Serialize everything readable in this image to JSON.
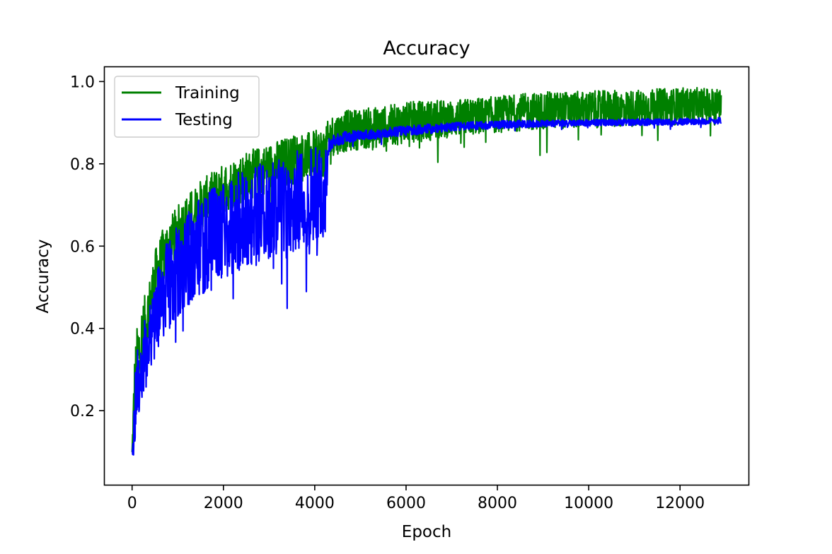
{
  "chart_data": {
    "type": "line",
    "title": "Accuracy",
    "xlabel": "Epoch",
    "ylabel": "Accuracy",
    "xlim": [
      -600,
      13500
    ],
    "ylim": [
      0.02,
      1.035
    ],
    "xticks": [
      0,
      2000,
      4000,
      6000,
      8000,
      10000,
      12000
    ],
    "yticks": [
      0.2,
      0.4,
      0.6,
      0.8,
      1.0
    ],
    "xtick_labels": [
      "0",
      "2000",
      "4000",
      "6000",
      "8000",
      "10000",
      "12000"
    ],
    "ytick_labels": [
      "0.2",
      "0.4",
      "0.6",
      "0.8",
      "1.0"
    ],
    "grid": false,
    "legend_position": "upper-left",
    "series": [
      {
        "name": "Training",
        "color": "#008000",
        "x": [
          0,
          50,
          100,
          200,
          300,
          400,
          500,
          700,
          1000,
          1500,
          2000,
          2500,
          3000,
          3500,
          4000,
          4250,
          4300,
          4400,
          4700,
          5000,
          5500,
          6000,
          6500,
          7000,
          7500,
          8000,
          8500,
          9000,
          10000,
          11000,
          12000,
          12900
        ],
        "y": [
          0.09,
          0.24,
          0.31,
          0.37,
          0.41,
          0.46,
          0.52,
          0.58,
          0.64,
          0.7,
          0.74,
          0.77,
          0.79,
          0.81,
          0.82,
          0.83,
          0.86,
          0.87,
          0.88,
          0.885,
          0.89,
          0.9,
          0.905,
          0.91,
          0.915,
          0.92,
          0.925,
          0.93,
          0.932,
          0.935,
          0.94,
          0.945
        ],
        "noise_band": [
          0.03,
          0.09,
          0.09,
          0.08,
          0.08,
          0.07,
          0.07,
          0.07,
          0.06,
          0.06,
          0.06,
          0.06,
          0.06,
          0.06,
          0.06,
          0.06,
          0.05,
          0.05,
          0.05,
          0.05,
          0.05,
          0.05,
          0.05,
          0.045,
          0.045,
          0.045,
          0.045,
          0.045,
          0.045,
          0.045,
          0.045,
          0.04
        ]
      },
      {
        "name": "Testing",
        "color": "#0000ff",
        "x": [
          0,
          50,
          100,
          200,
          300,
          400,
          500,
          700,
          1000,
          1500,
          2000,
          2500,
          3000,
          3500,
          4000,
          4250,
          4300,
          4400,
          4700,
          5000,
          5500,
          6000,
          6500,
          7000,
          7500,
          8000,
          8500,
          9000,
          10000,
          11000,
          12000,
          12900
        ],
        "y": [
          0.08,
          0.19,
          0.26,
          0.3,
          0.34,
          0.39,
          0.43,
          0.49,
          0.54,
          0.6,
          0.64,
          0.67,
          0.69,
          0.71,
          0.72,
          0.73,
          0.84,
          0.855,
          0.865,
          0.87,
          0.875,
          0.88,
          0.885,
          0.89,
          0.893,
          0.895,
          0.897,
          0.898,
          0.9,
          0.901,
          0.902,
          0.905
        ],
        "noise_band": [
          0.03,
          0.08,
          0.09,
          0.09,
          0.09,
          0.09,
          0.1,
          0.11,
          0.11,
          0.12,
          0.12,
          0.12,
          0.12,
          0.12,
          0.12,
          0.12,
          0.02,
          0.015,
          0.015,
          0.012,
          0.012,
          0.012,
          0.012,
          0.01,
          0.01,
          0.01,
          0.01,
          0.008,
          0.008,
          0.008,
          0.008,
          0.008
        ]
      }
    ]
  }
}
